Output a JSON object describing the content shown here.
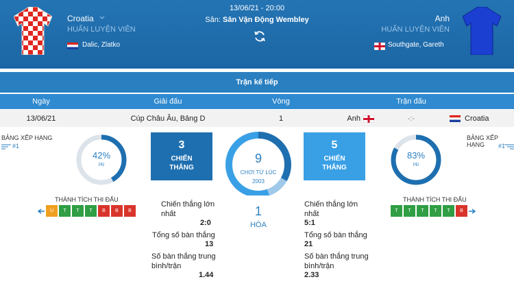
{
  "header": {
    "home": {
      "name": "Croatia",
      "coach_label": "HUẤN LUYỆN VIÊN",
      "coach": "Dalic, Zlatko"
    },
    "away": {
      "name": "Anh",
      "coach_label": "HUẤN LUYỆN VIÊN",
      "coach": "Southgate, Gareth"
    },
    "datetime": "13/06/21 - 20:00",
    "venue_label": "Sân:",
    "venue": "Sân Vận Động Wembley"
  },
  "next_match": {
    "title": "Trận kế tiếp",
    "columns": [
      "Ngày",
      "Giải đấu",
      "Vòng",
      "Trận đấu"
    ],
    "row": {
      "date": "13/06/21",
      "competition": "Cúp Châu Âu, Bảng D",
      "round": 1,
      "home": "Anh",
      "score": "-:-",
      "away": "Croatia"
    }
  },
  "stats": {
    "home": {
      "ranking_label": "BẢNG XẾP HẠNG",
      "rank": "#1",
      "percent": {
        "value": 42,
        "label": "42%"
      },
      "percent_caption": "PĐ",
      "form_label": "THÀNH TÍCH THI ĐẤU",
      "form": [
        "U",
        "T",
        "T",
        "T",
        "B",
        "B",
        "B"
      ],
      "wins": 3,
      "wins_label": "CHIẾN THẮNG",
      "biggest_win_label": "Chiến thắng lớn nhất",
      "biggest_win": "2:0",
      "goals_label": "Tổng số bàn thắng",
      "goals": 13,
      "avg_label": "Số bàn thắng trung bình/trận",
      "avg": 1.44
    },
    "away": {
      "ranking_label": "BẢNG XẾP HẠNG",
      "rank": "#1",
      "percent": {
        "value": 83,
        "label": "83%"
      },
      "percent_caption": "PĐ",
      "form_label": "THÀNH TÍCH THI ĐẤU",
      "form": [
        "T",
        "T",
        "T",
        "T",
        "T",
        "B"
      ],
      "wins": 5,
      "wins_label": "CHIẾN THẮNG",
      "biggest_win_label": "Chiến thắng lớn nhất",
      "biggest_win": "5:1",
      "goals_label": "Tổng số bàn thắng",
      "goals": 21,
      "avg_label": "Số bàn thắng trung bình/trận",
      "avg": 2.33
    },
    "matches": 9,
    "since_label": "CHƠI TỪ LÚC",
    "since": 2003,
    "draws": 1,
    "draws_label": "HÒA"
  },
  "form_colors": {
    "T": "#2f9e44",
    "U": "#f0a020",
    "B": "#d9342b"
  }
}
